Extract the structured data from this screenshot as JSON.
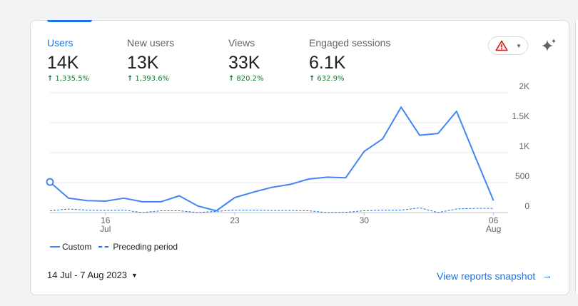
{
  "metrics": [
    {
      "label": "Users",
      "value": "14K",
      "change": "1,335.5%"
    },
    {
      "label": "New users",
      "value": "13K",
      "change": "1,393.6%"
    },
    {
      "label": "Views",
      "value": "33K",
      "change": "820.2%"
    },
    {
      "label": "Engaged sessions",
      "value": "6.1K",
      "change": "632.9%"
    }
  ],
  "icons": {
    "warning": "warning-triangle-icon",
    "dropdown": "caret-down-icon",
    "insights": "sparkle-icon",
    "link_arrow": "arrow-right-icon"
  },
  "colors": {
    "accent": "#1a73e8",
    "series_line": "#4285f4",
    "positive_change": "#137333",
    "warning": "#c5221f"
  },
  "chart_data": {
    "type": "line",
    "ylim": [
      0,
      2000
    ],
    "yticks": [
      "0",
      "500",
      "1K",
      "1.5K",
      "2K"
    ],
    "xtick_labels": [
      {
        "day": 3,
        "line1": "16",
        "line2": "Jul"
      },
      {
        "day": 10,
        "line1": "23",
        "line2": ""
      },
      {
        "day": 17,
        "line1": "30",
        "line2": ""
      },
      {
        "day": 24,
        "line1": "06",
        "line2": "Aug"
      }
    ],
    "series": [
      {
        "name": "Custom",
        "style": "solid",
        "values": [
          510,
          240,
          200,
          190,
          240,
          180,
          180,
          280,
          110,
          30,
          250,
          340,
          420,
          470,
          560,
          590,
          580,
          1020,
          1230,
          1760,
          1290,
          1320,
          1690,
          940,
          200
        ]
      },
      {
        "name": "Preceding period",
        "style": "dashed",
        "values": [
          30,
          60,
          40,
          35,
          40,
          0,
          30,
          30,
          0,
          20,
          40,
          40,
          35,
          35,
          30,
          0,
          5,
          30,
          40,
          40,
          80,
          0,
          60,
          70,
          70
        ]
      }
    ]
  },
  "legend": {
    "custom": "Custom",
    "preceding": "Preceding period"
  },
  "footer": {
    "date_range": "14 Jul - 7 Aug 2023",
    "snapshot_link": "View reports snapshot"
  }
}
